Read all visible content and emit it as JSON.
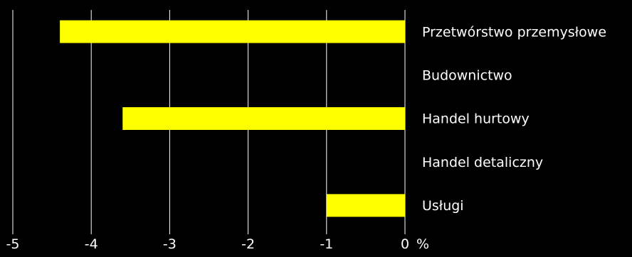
{
  "chart_data": {
    "type": "bar",
    "orientation": "horizontal",
    "categories": [
      "Przetwórstwo przemysłowe",
      "Budownictwo",
      "Handel hurtowy",
      "Handel detaliczny",
      "Usługi"
    ],
    "values": [
      -4.4,
      0,
      -3.6,
      0,
      -1.0
    ],
    "xlim": [
      -5,
      0
    ],
    "xticks": [
      -5,
      -4,
      -3,
      -2,
      -1,
      0
    ],
    "xtick_labels": [
      "-5",
      "-4",
      "-3",
      "-2",
      "-1",
      "0"
    ],
    "unit": "%",
    "grid": "vertical",
    "colors": {
      "background": "#000000",
      "bar": "#ffff00",
      "grid": "#ffffff",
      "text": "#ffffff"
    }
  }
}
